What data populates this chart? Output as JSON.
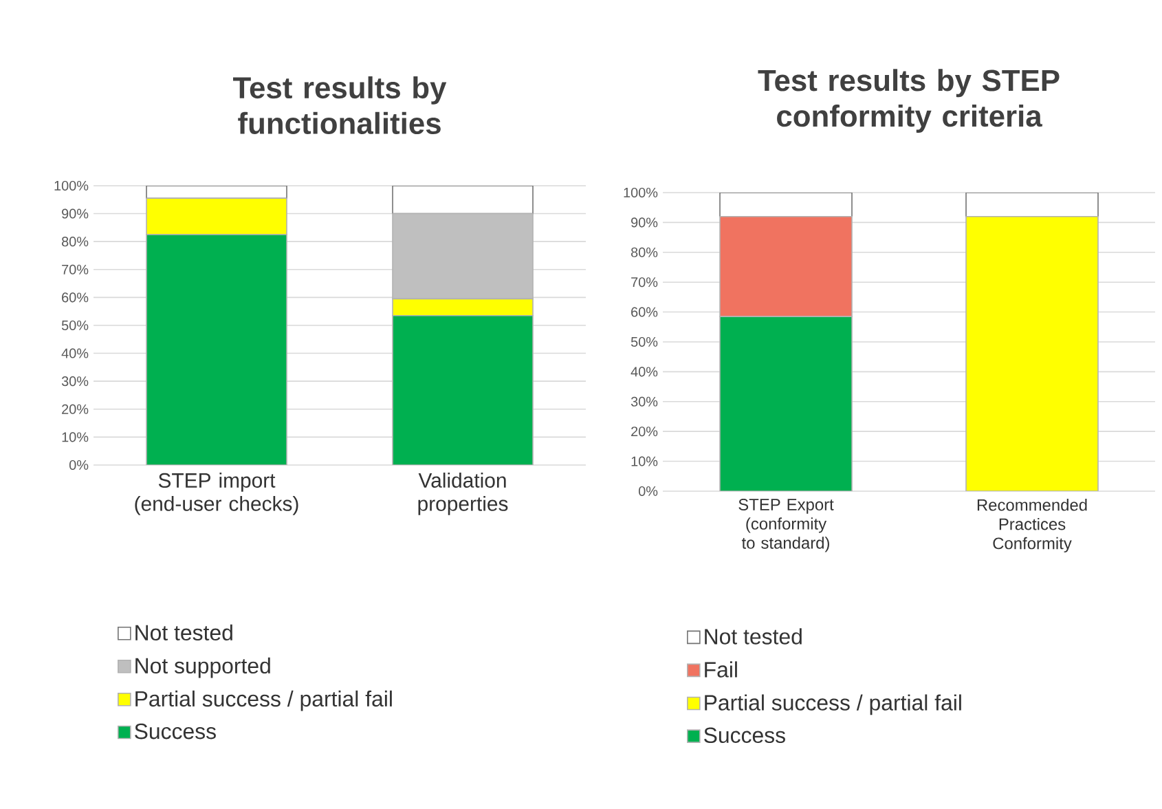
{
  "chart_data": [
    {
      "type": "bar",
      "title": "Test results by functionalities",
      "categories": [
        "STEP import (end-user checks)",
        "Validation properties"
      ],
      "stacked": true,
      "ylim": [
        0,
        100
      ],
      "yticks": [
        {
          "value": 0,
          "label": "0%"
        },
        {
          "value": 10,
          "label": "10%"
        },
        {
          "value": 20,
          "label": "20%"
        },
        {
          "value": 30,
          "label": "30%"
        },
        {
          "value": 40,
          "label": "40%"
        },
        {
          "value": 50,
          "label": "50%"
        },
        {
          "value": 60,
          "label": "60%"
        },
        {
          "value": 70,
          "label": "70%"
        },
        {
          "value": 80,
          "label": "80%"
        },
        {
          "value": 90,
          "label": "90%"
        },
        {
          "value": 100,
          "label": "100%"
        }
      ],
      "grid": "y",
      "legend": "bottom",
      "series": [
        {
          "name": "Success",
          "color": "#00b050",
          "values": [
            82.5,
            53.5
          ]
        },
        {
          "name": "Partial success / partial fail",
          "color": "#ffff00",
          "values": [
            13,
            6
          ]
        },
        {
          "name": "Not supported",
          "color": "#bfbfbf",
          "values": [
            0,
            30.5
          ]
        },
        {
          "name": "Not tested",
          "color": "#ffffff",
          "values": [
            4.5,
            10
          ]
        }
      ]
    },
    {
      "type": "bar",
      "title": "Test results by STEP conformity criteria",
      "categories": [
        "STEP Export (conformity to standard)",
        "Recommended Practices Conformity"
      ],
      "stacked": true,
      "ylim": [
        0,
        100
      ],
      "yticks": [
        {
          "value": 0,
          "label": "0%"
        },
        {
          "value": 10,
          "label": "10%"
        },
        {
          "value": 20,
          "label": "20%"
        },
        {
          "value": 30,
          "label": "30%"
        },
        {
          "value": 40,
          "label": "40%"
        },
        {
          "value": 50,
          "label": "50%"
        },
        {
          "value": 60,
          "label": "60%"
        },
        {
          "value": 70,
          "label": "70%"
        },
        {
          "value": 80,
          "label": "80%"
        },
        {
          "value": 90,
          "label": "90%"
        },
        {
          "value": 100,
          "label": "100%"
        }
      ],
      "grid": "y",
      "legend": "bottom",
      "series": [
        {
          "name": "Success",
          "color": "#00b050",
          "values": [
            58.5,
            0
          ]
        },
        {
          "name": "Partial success / partial fail",
          "color": "#ffff00",
          "values": [
            0,
            92
          ]
        },
        {
          "name": "Fail",
          "color": "#f07360",
          "values": [
            33.5,
            0
          ]
        },
        {
          "name": "Not tested",
          "color": "#ffffff",
          "values": [
            8,
            8
          ]
        }
      ]
    }
  ]
}
